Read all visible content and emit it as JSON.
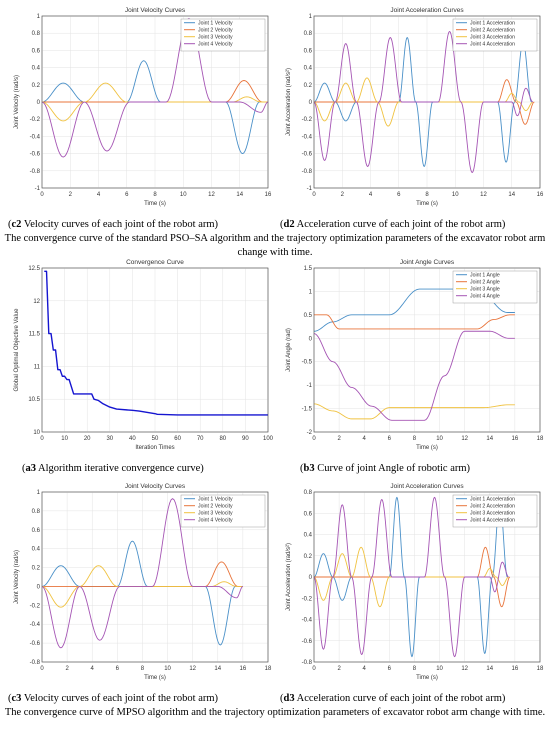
{
  "series_colors": {
    "Joint 1": "#4a90c8",
    "Joint 2": "#e8743b",
    "Joint 3": "#f0c240",
    "Joint 4": "#a555b4",
    "convergence": "#1515d0"
  },
  "captions": [
    {
      "id": "c2",
      "label": "c2",
      "text": " Velocity curves of each joint of the robot arm"
    },
    {
      "id": "d2",
      "label": "d2",
      "text": " Acceleration curve of each joint of the robot arm"
    },
    {
      "id": "a3",
      "label": "a3",
      "text": " Algorithm iterative convergence curve"
    },
    {
      "id": "b3",
      "label": "b3",
      "text": " Curve of joint Angle of robotic arm"
    },
    {
      "id": "c3",
      "label": "c3",
      "text": " Velocity curves of each joint of the robot arm"
    },
    {
      "id": "d3",
      "label": "d3",
      "text": " Acceleration curve of each joint of the robot arm"
    }
  ],
  "group_captions": [
    "The convergence curve of the standard PSO–SA algorithm and the trajectory optimization parameters of the excavator robot arm change with time.",
    "The convergence curve of MPSO algorithm and the trajectory optimization parameters of excavator robot arm change with time."
  ],
  "chart_data": [
    {
      "id": "c2",
      "type": "line",
      "title": "Joint Velocity Curves",
      "xlabel": "Time (s)",
      "ylabel": "Joint Velocity (rad/s)",
      "xlim": [
        0,
        16
      ],
      "ylim": [
        -1,
        1
      ],
      "xticks": [
        0,
        2,
        4,
        6,
        8,
        10,
        12,
        14,
        16
      ],
      "yticks": [
        -1,
        -0.8,
        -0.6,
        -0.4,
        -0.2,
        0,
        0.2,
        0.4,
        0.6,
        0.8,
        1
      ],
      "grid": true,
      "legend_position": "top-right",
      "series": [
        {
          "name": "Joint 1 Velocity",
          "x": [
            0,
            1.5,
            3,
            6,
            7.2,
            8.4,
            13,
            14.2,
            15.4,
            16
          ],
          "y": [
            0,
            0.22,
            0,
            0,
            0.48,
            0,
            0,
            -0.6,
            0,
            0
          ]
        },
        {
          "name": "Joint 2 Velocity",
          "x": [
            0,
            13,
            14.3,
            15.6,
            16
          ],
          "y": [
            0,
            0,
            0.25,
            0,
            0
          ]
        },
        {
          "name": "Joint 3 Velocity",
          "x": [
            0,
            1.5,
            3,
            4.5,
            6,
            13.5,
            14.5,
            15.5,
            16
          ],
          "y": [
            0,
            -0.22,
            0,
            0.22,
            0,
            0,
            0.06,
            0,
            0
          ]
        },
        {
          "name": "Joint 4 Velocity",
          "x": [
            0,
            1.5,
            3,
            4.6,
            6.2,
            8.8,
            10.4,
            12,
            14,
            15.5,
            16
          ],
          "y": [
            0,
            -0.64,
            0,
            -0.57,
            0,
            0,
            0.97,
            0,
            0,
            -0.12,
            0
          ]
        }
      ]
    },
    {
      "id": "d2",
      "type": "line",
      "title": "Joint Acceleration Curves",
      "xlabel": "Time (s)",
      "ylabel": "Joint Acceleration (rad/s²)",
      "xlim": [
        0,
        16
      ],
      "ylim": [
        -1,
        1
      ],
      "xticks": [
        0,
        2,
        4,
        6,
        8,
        10,
        12,
        14,
        16
      ],
      "yticks": [
        -1,
        -0.8,
        -0.6,
        -0.4,
        -0.2,
        0,
        0.2,
        0.4,
        0.6,
        0.8,
        1
      ],
      "grid": true,
      "legend_position": "top-right",
      "series": [
        {
          "name": "Joint 1 Acceleration",
          "x": [
            0,
            0.75,
            1.5,
            2.25,
            3,
            6,
            6.6,
            7.2,
            7.8,
            8.4,
            13,
            13.6,
            14.2,
            14.8,
            15.4
          ],
          "y": [
            0,
            0.22,
            0,
            -0.22,
            0,
            0,
            0.75,
            0,
            -0.75,
            0,
            0,
            -0.7,
            0,
            0.7,
            0
          ]
        },
        {
          "name": "Joint 2 Acceleration",
          "x": [
            0,
            13,
            13.65,
            14.3,
            14.95,
            15.6
          ],
          "y": [
            0,
            0,
            0.26,
            0,
            -0.26,
            0
          ]
        },
        {
          "name": "Joint 3 Acceleration",
          "x": [
            0,
            0.75,
            1.5,
            2.25,
            3,
            3.75,
            4.5,
            5.25,
            6,
            13.5,
            14,
            14.5,
            15,
            15.5
          ],
          "y": [
            0,
            -0.22,
            0,
            0.22,
            0,
            0.28,
            0,
            -0.28,
            0,
            0,
            0.1,
            0,
            -0.1,
            0
          ]
        },
        {
          "name": "Joint 4 Acceleration",
          "x": [
            0,
            0.75,
            1.5,
            2.25,
            3,
            3.8,
            4.6,
            5.4,
            6.2,
            8.8,
            9.6,
            10.4,
            11.2,
            12,
            14,
            14.4,
            15,
            15.5
          ],
          "y": [
            0,
            -0.68,
            0,
            0.68,
            0,
            -0.75,
            0,
            0.75,
            0,
            0,
            0.82,
            0,
            -0.82,
            0,
            0,
            -0.16,
            0.16,
            0
          ]
        }
      ]
    },
    {
      "id": "a3",
      "type": "line",
      "title": "Convergence Curve",
      "xlabel": "Iteration Times",
      "ylabel": "Global Optimal Objective Value",
      "xlim": [
        0,
        100
      ],
      "ylim": [
        10,
        12.5
      ],
      "xticks": [
        0,
        10,
        20,
        30,
        40,
        50,
        60,
        70,
        80,
        90,
        100
      ],
      "yticks": [
        10,
        10.5,
        11,
        11.5,
        12,
        12.5
      ],
      "grid": true,
      "series": [
        {
          "name": "",
          "x": [
            1,
            2,
            3,
            4,
            5,
            6,
            7,
            8,
            9,
            10,
            11,
            12,
            14,
            15,
            22,
            23,
            25,
            27,
            30,
            33,
            40,
            43,
            50,
            51,
            60,
            100
          ],
          "y": [
            12.45,
            12.45,
            11.5,
            11.5,
            11.25,
            11.25,
            10.95,
            10.95,
            10.85,
            10.85,
            10.8,
            10.8,
            10.58,
            10.58,
            10.58,
            10.5,
            10.48,
            10.43,
            10.38,
            10.35,
            10.33,
            10.32,
            10.28,
            10.27,
            10.26,
            10.26
          ]
        }
      ]
    },
    {
      "id": "b3",
      "type": "line",
      "title": "Joint Angle Curves",
      "xlabel": "Time (s)",
      "ylabel": "Joint Angle (rad)",
      "xlim": [
        0,
        18
      ],
      "ylim": [
        -2,
        1.5
      ],
      "xticks": [
        0,
        2,
        4,
        6,
        8,
        10,
        12,
        14,
        16,
        18
      ],
      "yticks": [
        -2,
        -1.5,
        -1,
        -0.5,
        0,
        0.5,
        1,
        1.5
      ],
      "grid": true,
      "legend_position": "top-right",
      "series": [
        {
          "name": "Joint 1 Angle",
          "x": [
            0,
            1.5,
            3,
            6,
            8.4,
            13,
            15.4,
            16
          ],
          "y": [
            0.15,
            0.35,
            0.5,
            0.5,
            1.05,
            1.05,
            0.55,
            0.55
          ]
        },
        {
          "name": "Joint 2 Angle",
          "x": [
            0,
            1,
            2,
            13,
            14.3,
            15.6,
            16
          ],
          "y": [
            0.5,
            0.5,
            0.2,
            0.2,
            0.4,
            0.5,
            0.5
          ]
        },
        {
          "name": "Joint 3 Angle",
          "x": [
            0,
            1.5,
            3,
            4.5,
            6,
            13.5,
            15.5,
            16
          ],
          "y": [
            -1.4,
            -1.55,
            -1.72,
            -1.72,
            -1.48,
            -1.48,
            -1.42,
            -1.42
          ]
        },
        {
          "name": "Joint 4 Angle",
          "x": [
            0,
            1.5,
            3,
            4.6,
            6.2,
            8.8,
            10.4,
            12,
            14,
            15.5,
            16
          ],
          "y": [
            0.1,
            -0.5,
            -1.05,
            -1.45,
            -1.75,
            -1.75,
            -0.8,
            0.15,
            0.15,
            0,
            0
          ]
        }
      ]
    },
    {
      "id": "c3",
      "type": "line",
      "title": "Joint Velocity Curves",
      "xlabel": "Time (s)",
      "ylabel": "Joint Velocity (rad/s)",
      "xlim": [
        0,
        18
      ],
      "ylim": [
        -0.8,
        1
      ],
      "xticks": [
        0,
        2,
        4,
        6,
        8,
        10,
        12,
        14,
        16,
        18
      ],
      "yticks": [
        -0.8,
        -0.6,
        -0.4,
        -0.2,
        0,
        0.2,
        0.4,
        0.6,
        0.8,
        1
      ],
      "grid": true,
      "legend_position": "top-right",
      "series": [
        {
          "name": "Joint 1 Velocity",
          "x": [
            0,
            1.5,
            3,
            6,
            7.2,
            8.4,
            13,
            14.2,
            15.4,
            16
          ],
          "y": [
            0,
            0.22,
            0,
            0,
            0.48,
            0,
            0,
            -0.62,
            0,
            0
          ]
        },
        {
          "name": "Joint 2 Velocity",
          "x": [
            0,
            13,
            14.3,
            15.6,
            16
          ],
          "y": [
            0,
            0,
            0.26,
            0,
            0
          ]
        },
        {
          "name": "Joint 3 Velocity",
          "x": [
            0,
            1.5,
            3,
            4.5,
            6,
            13.5,
            14.5,
            15.5,
            16
          ],
          "y": [
            0,
            -0.22,
            0,
            0.22,
            0,
            0,
            0.05,
            0,
            0
          ]
        },
        {
          "name": "Joint 4 Velocity",
          "x": [
            0,
            1.5,
            3,
            4.6,
            6.2,
            8.8,
            10.4,
            12,
            14,
            15.5,
            16
          ],
          "y": [
            0,
            -0.65,
            0,
            -0.57,
            0,
            0,
            0.93,
            0,
            0,
            -0.12,
            0
          ]
        }
      ]
    },
    {
      "id": "d3",
      "type": "line",
      "title": "Joint Acceleration Curves",
      "xlabel": "Time (s)",
      "ylabel": "Joint Acceleration (rad/s²)",
      "xlim": [
        0,
        18
      ],
      "ylim": [
        -0.8,
        0.8
      ],
      "xticks": [
        0,
        2,
        4,
        6,
        8,
        10,
        12,
        14,
        16,
        18
      ],
      "yticks": [
        -0.8,
        -0.6,
        -0.4,
        -0.2,
        0,
        0.2,
        0.4,
        0.6,
        0.8
      ],
      "grid": true,
      "legend_position": "top-right",
      "series": [
        {
          "name": "Joint 1 Acceleration",
          "x": [
            0,
            0.75,
            1.5,
            2.25,
            3,
            6,
            6.6,
            7.2,
            7.8,
            8.4,
            13,
            13.6,
            14.2,
            14.8,
            15.4
          ],
          "y": [
            0,
            0.22,
            0,
            -0.22,
            0,
            0,
            0.75,
            0,
            -0.75,
            0,
            0,
            -0.72,
            0,
            0.72,
            0
          ]
        },
        {
          "name": "Joint 2 Acceleration",
          "x": [
            0,
            13,
            13.65,
            14.3,
            14.95,
            15.6
          ],
          "y": [
            0,
            0,
            0.28,
            0,
            -0.28,
            0
          ]
        },
        {
          "name": "Joint 3 Acceleration",
          "x": [
            0,
            0.75,
            1.5,
            2.25,
            3,
            3.75,
            4.5,
            5.25,
            6,
            13.5,
            14,
            14.5,
            15,
            15.5
          ],
          "y": [
            0,
            -0.22,
            0,
            0.22,
            0,
            0.28,
            0,
            -0.28,
            0,
            0,
            0.08,
            0,
            -0.08,
            0
          ]
        },
        {
          "name": "Joint 4 Acceleration",
          "x": [
            0,
            0.75,
            1.5,
            2.25,
            3,
            3.8,
            4.6,
            5.4,
            6.2,
            8.8,
            9.6,
            10.4,
            11.2,
            12,
            14,
            14.4,
            15,
            15.5
          ],
          "y": [
            0,
            -0.68,
            0,
            0.68,
            0,
            -0.73,
            0,
            0.73,
            0,
            0,
            0.75,
            0,
            -0.75,
            0,
            0,
            -0.14,
            0.14,
            0
          ]
        }
      ]
    }
  ]
}
